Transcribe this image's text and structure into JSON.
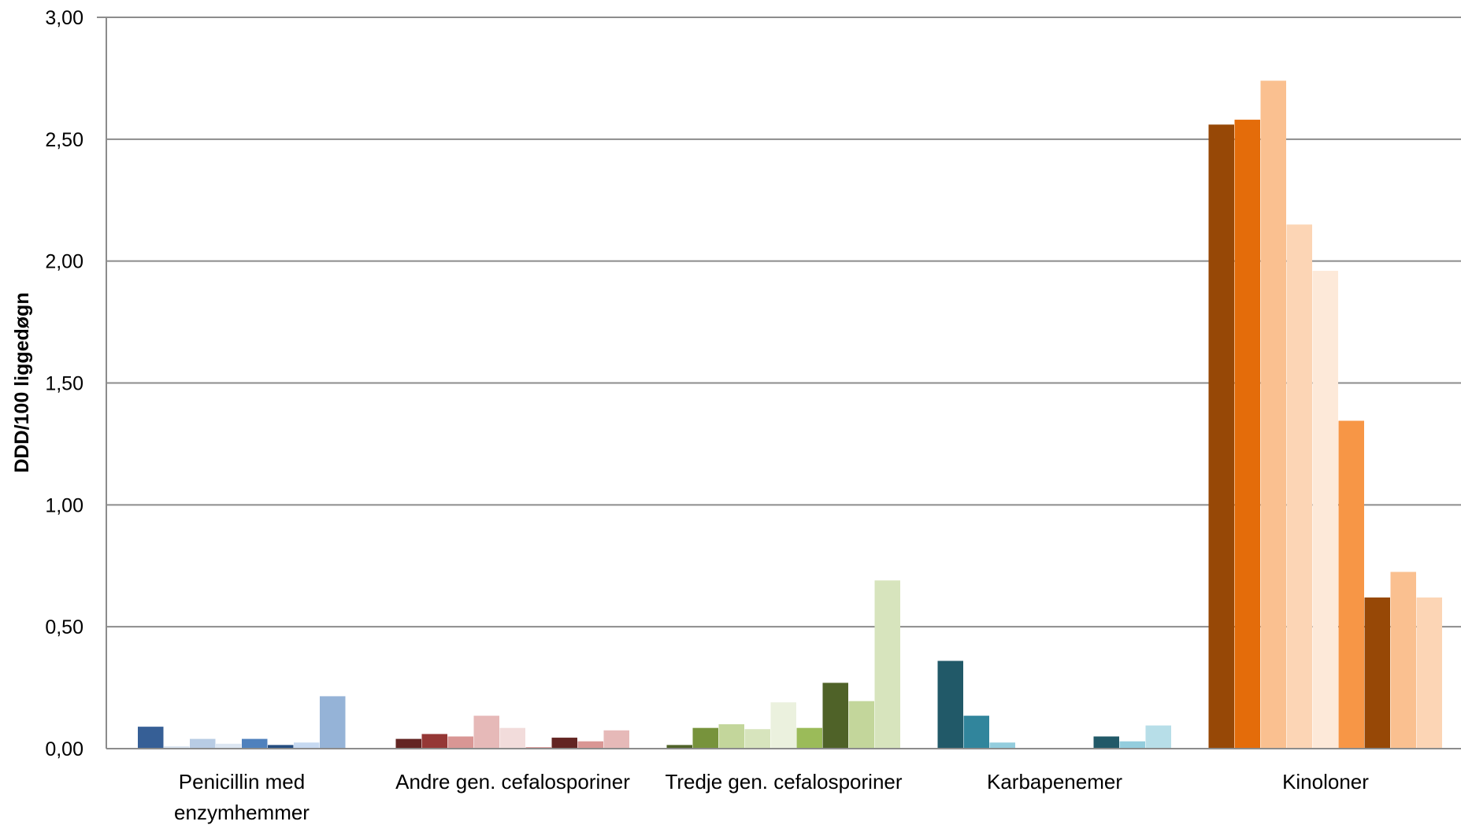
{
  "chart_data": {
    "type": "bar",
    "title": "",
    "xlabel": "",
    "ylabel": "DDD/100 liggedøgn",
    "ylim": [
      0,
      3
    ],
    "yticks": [
      "0,00",
      "0,50",
      "1,00",
      "1,50",
      "2,00",
      "2,50",
      "3,00"
    ],
    "ytick_values": [
      0,
      0.5,
      1,
      1.5,
      2,
      2.5,
      3
    ],
    "grid": true,
    "legend": "none",
    "groups": [
      {
        "label": [
          "Penicillin med",
          "enzymhemmer"
        ],
        "values": [
          0.09,
          0.01,
          0.04,
          0.02,
          0.04,
          0.015,
          0.025,
          0.215
        ],
        "colors": [
          "#365f96",
          "#dbe5f1",
          "#b8cce4",
          "#dce6f2",
          "#4f81bd",
          "#254d80",
          "#c6d9f1",
          "#95b3d7"
        ]
      },
      {
        "label": [
          "Andre gen. cefalosporiner"
        ],
        "values": [
          0.04,
          0.06,
          0.05,
          0.135,
          0.085,
          0.005,
          0.045,
          0.03,
          0.075
        ],
        "colors": [
          "#632523",
          "#953735",
          "#d99694",
          "#e6b9b8",
          "#f2dcdb",
          "#c0504d",
          "#632523",
          "#d99694",
          "#e6b9b8"
        ]
      },
      {
        "label": [
          "Tredje gen. cefalosporiner"
        ],
        "values": [
          0.015,
          0.085,
          0.1,
          0.08,
          0.19,
          0.085,
          0.27,
          0.195,
          0.69
        ],
        "colors": [
          "#4f6228",
          "#77933c",
          "#c3d69b",
          "#d7e4bd",
          "#ebf1de",
          "#9bbb59",
          "#4f6228",
          "#c3d69b",
          "#d7e4bd"
        ]
      },
      {
        "label": [
          "Karbapenemer"
        ],
        "values": [
          0.36,
          0.135,
          0.025,
          0,
          0,
          0,
          0.05,
          0.03,
          0.095
        ],
        "colors": [
          "#215968",
          "#31859c",
          "#93cddd",
          "#b7dee8",
          "#dbeef4",
          "#4bacc6",
          "#215968",
          "#93cddd",
          "#b7dee8"
        ]
      },
      {
        "label": [
          "Kinoloner"
        ],
        "values": [
          2.56,
          2.58,
          2.74,
          2.15,
          1.96,
          1.345,
          0.62,
          0.725,
          0.62
        ],
        "colors": [
          "#974806",
          "#e46c0a",
          "#fac090",
          "#fcd5b5",
          "#fde9d9",
          "#f79646",
          "#974806",
          "#fac090",
          "#fcd5b5"
        ]
      }
    ]
  }
}
